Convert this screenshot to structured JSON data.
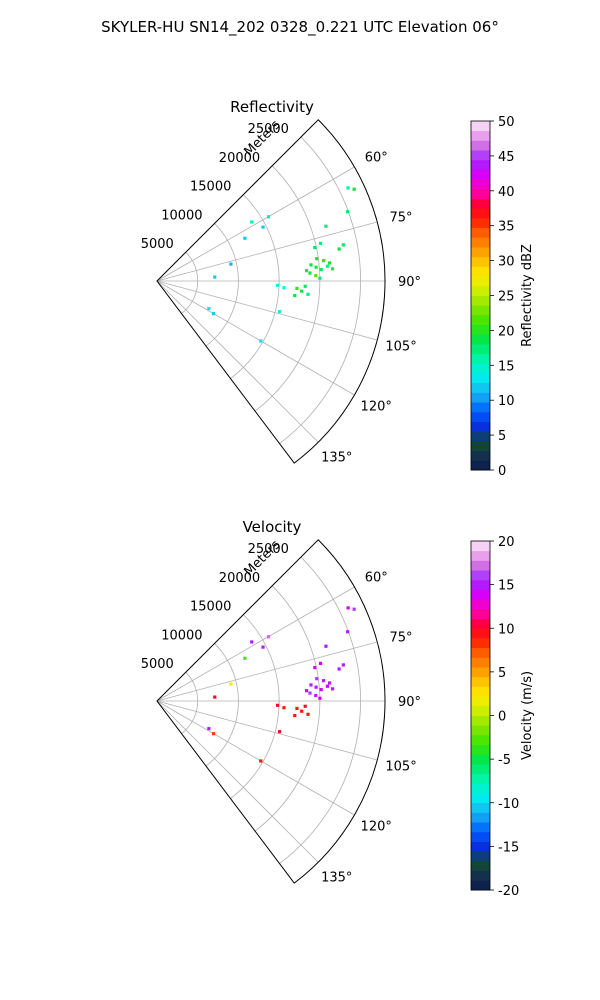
{
  "figure": {
    "suptitle": "SKYLER-HU  SN14_202  0328_0.221 UTC Elevation 06°"
  },
  "chart_data": [
    {
      "type": "polar-sector",
      "title": "Reflectivity",
      "radial_label": "Meters",
      "radial_ticks": [
        5000,
        10000,
        15000,
        20000,
        25000
      ],
      "radial_max": 28000,
      "azimuth_range_deg": [
        45,
        143
      ],
      "azimuth_ticks_deg": [
        60,
        75,
        90,
        105,
        120,
        135
      ],
      "azimuth_labels": [
        "60°",
        "75°",
        "90°",
        "105°",
        "120°",
        "135°"
      ],
      "grid": true,
      "colorbar": {
        "label": "Reflectivity dBZ",
        "min": 0,
        "max": 50,
        "ticks": [
          0,
          5,
          10,
          15,
          20,
          25,
          30,
          35,
          40,
          45,
          50
        ]
      },
      "points": [
        {
          "az": 84,
          "r": 19000,
          "v": 19
        },
        {
          "az": 85,
          "r": 19600,
          "v": 20
        },
        {
          "az": 86,
          "r": 20200,
          "v": 18
        },
        {
          "az": 83,
          "r": 20600,
          "v": 21
        },
        {
          "az": 87,
          "r": 18800,
          "v": 19
        },
        {
          "az": 85,
          "r": 21000,
          "v": 17
        },
        {
          "az": 88,
          "r": 19500,
          "v": 22
        },
        {
          "az": 86,
          "r": 18400,
          "v": 18
        },
        {
          "az": 84,
          "r": 21300,
          "v": 20
        },
        {
          "az": 82,
          "r": 19800,
          "v": 19
        },
        {
          "az": 89,
          "r": 20000,
          "v": 17
        },
        {
          "az": 86,
          "r": 21600,
          "v": 18
        },
        {
          "az": 93,
          "r": 17200,
          "v": 20
        },
        {
          "az": 94,
          "r": 17800,
          "v": 19
        },
        {
          "az": 92,
          "r": 18200,
          "v": 18
        },
        {
          "az": 95,
          "r": 18600,
          "v": 17
        },
        {
          "az": 96,
          "r": 17000,
          "v": 19
        },
        {
          "az": 93,
          "r": 15600,
          "v": 14
        },
        {
          "az": 92,
          "r": 14800,
          "v": 14
        },
        {
          "az": 78,
          "r": 19800,
          "v": 18
        },
        {
          "az": 77,
          "r": 20600,
          "v": 17
        },
        {
          "az": 80,
          "r": 22700,
          "v": 19
        },
        {
          "az": 79,
          "r": 23300,
          "v": 18
        },
        {
          "az": 72,
          "r": 21800,
          "v": 17
        },
        {
          "az": 70,
          "r": 24900,
          "v": 18
        },
        {
          "az": 64,
          "r": 26100,
          "v": 16
        },
        {
          "az": 65,
          "r": 26700,
          "v": 19
        },
        {
          "az": 60,
          "r": 15800,
          "v": 16
        },
        {
          "az": 58,
          "r": 13700,
          "v": 15
        },
        {
          "az": 64,
          "r": 12000,
          "v": 12
        },
        {
          "az": 63,
          "r": 14600,
          "v": 12
        },
        {
          "az": 77,
          "r": 9300,
          "v": 11
        },
        {
          "az": 86,
          "r": 7100,
          "v": 12
        },
        {
          "az": 118,
          "r": 7200,
          "v": 13
        },
        {
          "az": 120,
          "r": 8000,
          "v": 12
        },
        {
          "az": 120,
          "r": 14700,
          "v": 13
        },
        {
          "az": 104,
          "r": 15500,
          "v": 14
        }
      ]
    },
    {
      "type": "polar-sector",
      "title": "Velocity",
      "radial_label": "Meters",
      "radial_ticks": [
        5000,
        10000,
        15000,
        20000,
        25000
      ],
      "radial_max": 28000,
      "azimuth_range_deg": [
        45,
        143
      ],
      "azimuth_ticks_deg": [
        60,
        75,
        90,
        105,
        120,
        135
      ],
      "azimuth_labels": [
        "60°",
        "75°",
        "90°",
        "105°",
        "120°",
        "135°"
      ],
      "grid": true,
      "colorbar": {
        "label": "Velocity (m/s)",
        "min": -20,
        "max": 20,
        "ticks": [
          -20,
          -15,
          -10,
          -5,
          0,
          5,
          10,
          15,
          20
        ]
      },
      "points": [
        {
          "az": 84,
          "r": 19000,
          "v": 15
        },
        {
          "az": 85,
          "r": 19600,
          "v": 15
        },
        {
          "az": 86,
          "r": 20200,
          "v": 14
        },
        {
          "az": 83,
          "r": 20600,
          "v": 15
        },
        {
          "az": 87,
          "r": 18800,
          "v": 16
        },
        {
          "az": 85,
          "r": 21000,
          "v": 14
        },
        {
          "az": 88,
          "r": 19500,
          "v": 15
        },
        {
          "az": 86,
          "r": 18400,
          "v": 14
        },
        {
          "az": 84,
          "r": 21300,
          "v": 15
        },
        {
          "az": 82,
          "r": 19800,
          "v": 16
        },
        {
          "az": 89,
          "r": 20000,
          "v": 14
        },
        {
          "az": 86,
          "r": 21600,
          "v": 15
        },
        {
          "az": 93,
          "r": 17200,
          "v": 9
        },
        {
          "az": 94,
          "r": 17800,
          "v": 9
        },
        {
          "az": 92,
          "r": 18200,
          "v": 10
        },
        {
          "az": 95,
          "r": 18600,
          "v": 9
        },
        {
          "az": 96,
          "r": 17000,
          "v": 9
        },
        {
          "az": 93,
          "r": 15600,
          "v": 9
        },
        {
          "az": 92,
          "r": 14800,
          "v": 10
        },
        {
          "az": 78,
          "r": 19800,
          "v": 15
        },
        {
          "az": 77,
          "r": 20600,
          "v": 14
        },
        {
          "az": 80,
          "r": 22700,
          "v": 15
        },
        {
          "az": 79,
          "r": 23300,
          "v": 15
        },
        {
          "az": 72,
          "r": 21800,
          "v": 15
        },
        {
          "az": 70,
          "r": 24900,
          "v": 15
        },
        {
          "az": 64,
          "r": 26100,
          "v": 14
        },
        {
          "az": 65,
          "r": 26700,
          "v": 16
        },
        {
          "az": 60,
          "r": 15800,
          "v": 17
        },
        {
          "az": 58,
          "r": 13700,
          "v": 15
        },
        {
          "az": 64,
          "r": 12000,
          "v": -3
        },
        {
          "az": 63,
          "r": 14600,
          "v": 15
        },
        {
          "az": 77,
          "r": 9300,
          "v": 2
        },
        {
          "az": 86,
          "r": 7100,
          "v": 10
        },
        {
          "az": 118,
          "r": 7200,
          "v": 15
        },
        {
          "az": 120,
          "r": 8000,
          "v": 8
        },
        {
          "az": 120,
          "r": 14700,
          "v": 9
        },
        {
          "az": 104,
          "r": 15500,
          "v": 10
        }
      ]
    }
  ]
}
